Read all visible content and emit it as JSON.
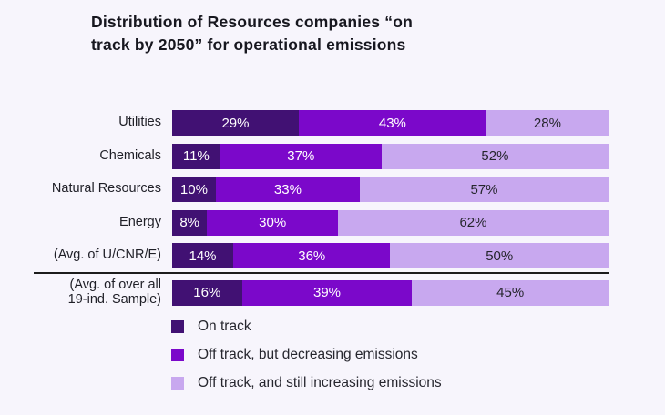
{
  "header": {
    "title_display": "Distribution of Resources companies “on\ntrack by 2050” for operational emissions"
  },
  "chart_data": {
    "type": "bar",
    "orientation": "horizontal",
    "stacked": true,
    "title": "Distribution of Resources companies “on track by 2050” for operational emissions",
    "xlabel": "",
    "ylabel": "",
    "value_unit": "%",
    "xlim": [
      0,
      100
    ],
    "grid": false,
    "legend_position": "bottom-left",
    "divider_before_index": 5,
    "categories": [
      "Utilities",
      "Chemicals",
      "Natural Resources",
      "Energy",
      "(Avg. of U/CNR/E)",
      "(Avg. of over all\n19-ind. Sample)"
    ],
    "series": [
      {
        "key": "on-track",
        "name": "On track",
        "color": "#411173",
        "value_label_color": "#ffffff",
        "values": [
          29,
          11,
          10,
          8,
          14,
          16
        ]
      },
      {
        "key": "off-track-decreasing",
        "name": "Off track, but decreasing emissions",
        "color": "#7b08ca",
        "value_label_color": "#ffffff",
        "values": [
          43,
          37,
          33,
          30,
          36,
          39
        ]
      },
      {
        "key": "off-track-increasing",
        "name": "Off track, and still increasing emissions",
        "color": "#c8a8ef",
        "value_label_color": "#26262e",
        "values": [
          28,
          52,
          57,
          62,
          50,
          45
        ]
      }
    ],
    "colors": {
      "background": "#f7f5fc",
      "divider": "#1c1c1c",
      "title_text": "#17171f",
      "label_text": "#1f1f27"
    }
  }
}
